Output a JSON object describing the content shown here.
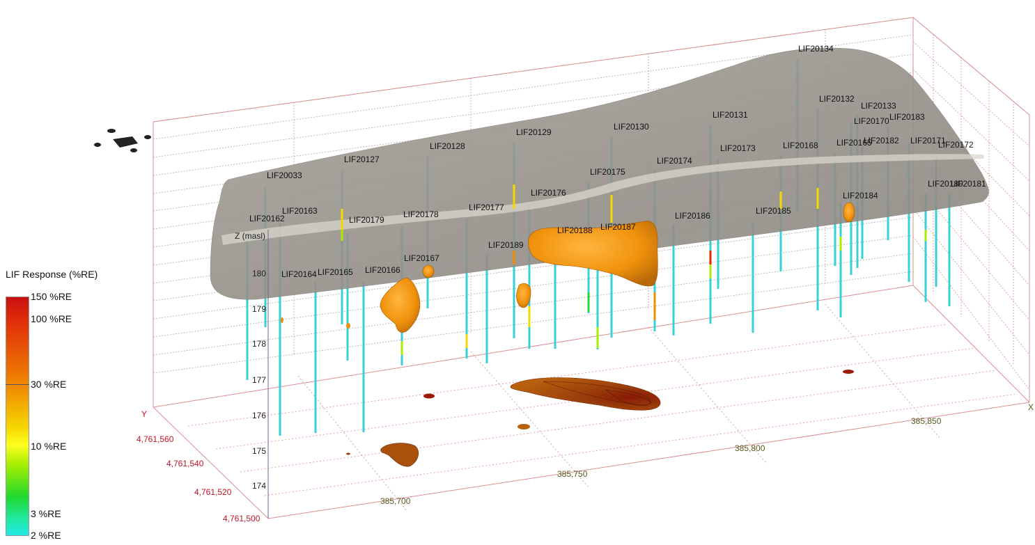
{
  "axes": {
    "z_title": "Z (masl)",
    "z_ticks": [
      "180",
      "179",
      "178",
      "177",
      "176",
      "175",
      "174"
    ],
    "y_title": "Y",
    "y_ticks": [
      "4,761,560",
      "4,761,540",
      "4,761,520",
      "4,761,500"
    ],
    "x_title": "X",
    "x_ticks": [
      "385,700",
      "385,750",
      "385,800",
      "385,850"
    ]
  },
  "legend": {
    "title": "LIF Response (%RE)",
    "ticks": [
      "150 %RE",
      "100 %RE",
      "30 %RE",
      "10 %RE",
      "3 %RE",
      "2 %RE"
    ],
    "colors": [
      "#c81010",
      "#e02a0a",
      "#f08c00",
      "#f5d800",
      "#ffff20",
      "#a8ee00",
      "#20d830",
      "#20e8a0",
      "#20e8e8"
    ]
  },
  "boreholes": [
    "LIF20134",
    "LIF20132",
    "LIF20133",
    "LIF20131",
    "LIF20170",
    "LIF20183",
    "LIF20130",
    "LIF20129",
    "LIF20128",
    "LIF20127",
    "LIF20173",
    "LIF20168",
    "LIF20165",
    "LIF20182",
    "LIF20171",
    "LIF20172",
    "LIF20174",
    "LIF20175",
    "LIF20033",
    "LIF20176",
    "LIF20180",
    "LIF20181",
    "LIF20184",
    "LIF20163",
    "LIF20162",
    "LIF20179",
    "LIF20178",
    "LIF20177",
    "LIF20186",
    "LIF20185",
    "LIF20188",
    "LIF20187",
    "LIF20189",
    "LIF20167",
    "LIF20164",
    "LIF20165",
    "LIF20166"
  ],
  "colors": {
    "surface": "#9a948c",
    "plume": "#e8900c",
    "plume_shadow": "#a8500c",
    "frame": "#d89090",
    "probe": "#38d0d8"
  }
}
